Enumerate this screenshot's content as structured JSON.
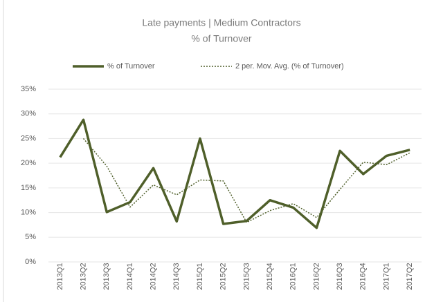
{
  "chart_data": {
    "type": "line",
    "title": [
      "Late payments  |  Medium  Contractors",
      "% of Turnover"
    ],
    "categories": [
      "2013Q1",
      "2013Q2",
      "2013Q3",
      "2014Q1",
      "2014Q2",
      "2014Q3",
      "2015Q1",
      "2015Q2",
      "2015Q3",
      "2015Q4",
      "2016Q1",
      "2016Q2",
      "2016Q3",
      "2016Q4",
      "2017Q1",
      "2017Q2"
    ],
    "series": [
      {
        "name": "% of Turnover",
        "color": "#4f5f2a",
        "style": "solid",
        "values": [
          21.2,
          28.8,
          10.1,
          12.1,
          19,
          8.2,
          25,
          7.7,
          8.3,
          12.5,
          11,
          6.9,
          22.5,
          17.8,
          21.5,
          22.7
        ]
      },
      {
        "name": "2 per. Mov. Avg. (% of Turnover)",
        "color": "#4f5f2a",
        "style": "dotted",
        "values": [
          null,
          25,
          19.4,
          11.1,
          15.6,
          13.6,
          16.6,
          16.4,
          8,
          10.4,
          11.8,
          9,
          14.7,
          20.2,
          19.7,
          22.1
        ]
      }
    ],
    "ylim": [
      0,
      35
    ],
    "yticks": [
      {
        "value": 0,
        "label": "0%"
      },
      {
        "value": 5,
        "label": "5%"
      },
      {
        "value": 10,
        "label": "10%"
      },
      {
        "value": 15,
        "label": "15%"
      },
      {
        "value": 20,
        "label": "20%"
      },
      {
        "value": 25,
        "label": "25%"
      },
      {
        "value": 30,
        "label": "30%"
      },
      {
        "value": 35,
        "label": "35%"
      }
    ],
    "legend": "top"
  }
}
